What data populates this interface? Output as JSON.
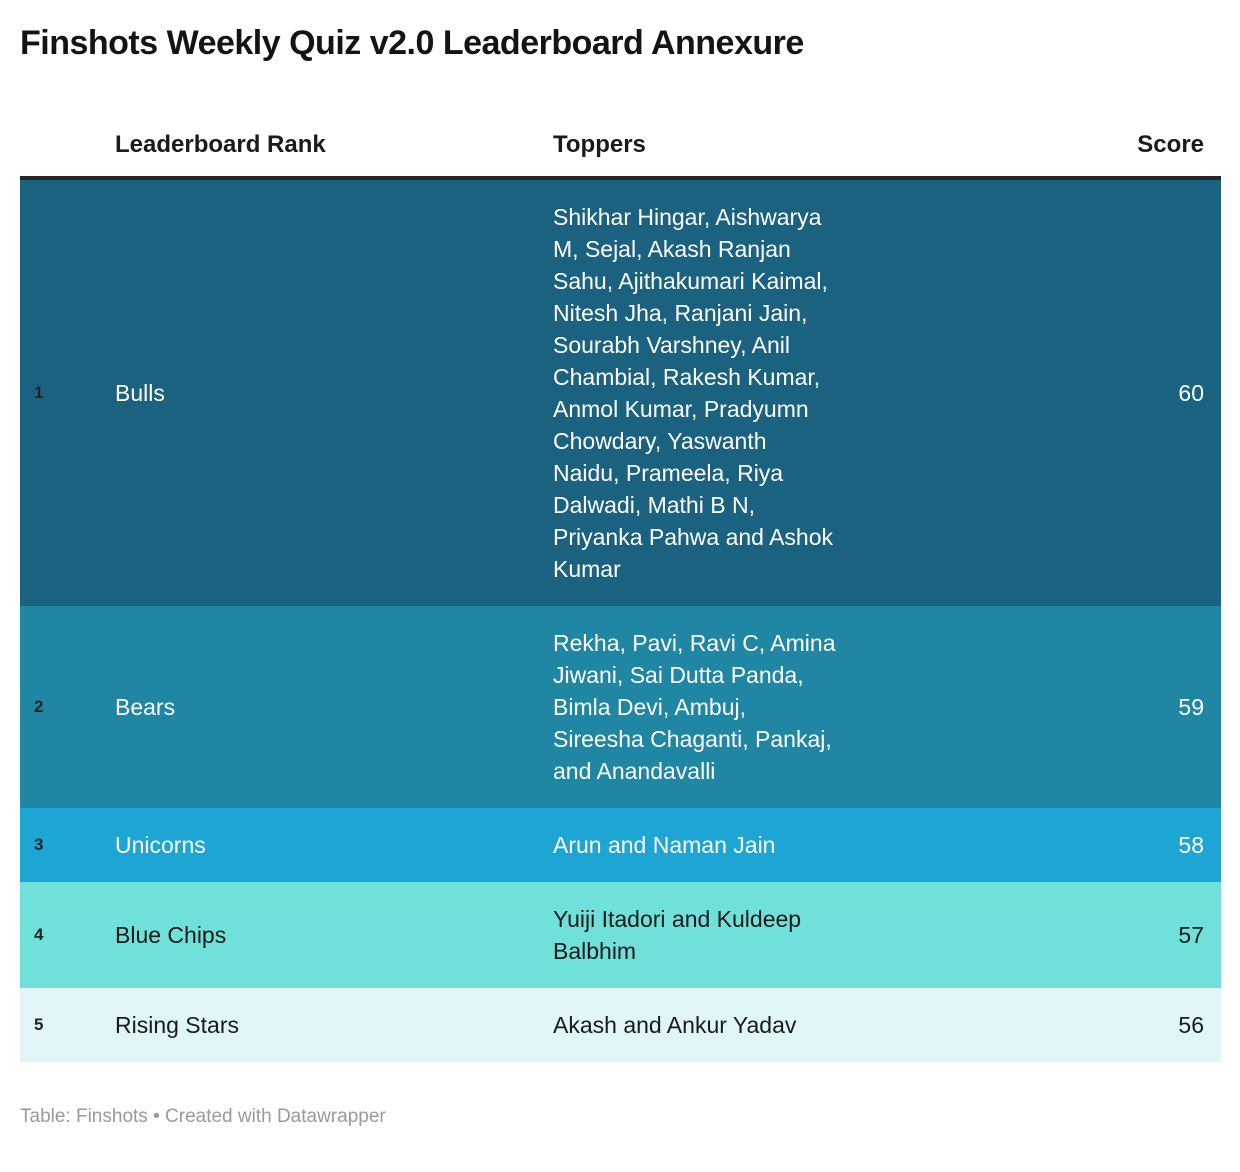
{
  "title": "Finshots Weekly Quiz v2.0 Leaderboard Annexure",
  "table": {
    "columns": [
      "Leaderboard Rank",
      "Toppers",
      "Score"
    ],
    "rows": [
      {
        "rank": "1",
        "team": "Bulls",
        "toppers": "Shikhar Hingar, Aishwarya\nM, Sejal, Akash Ranjan\nSahu, Ajithakumari Kaimal,\nNitesh Jha, Ranjani Jain,\nSourabh Varshney, Anil\nChambial, Rakesh Kumar,\nAnmol Kumar, Pradyumn\nChowdary, Yaswanth\nNaidu, Prameela, Riya\nDalwadi, Mathi B N,\nPriyanka Pahwa and Ashok\nKumar",
        "score": "60",
        "bg": "#1A627F",
        "fg": "#FFFFFF"
      },
      {
        "rank": "2",
        "team": "Bears",
        "toppers": "Rekha, Pavi, Ravi C, Amina\nJiwani, Sai Dutta Panda,\nBimla Devi, Ambuj,\nSireesha Chaganti, Pankaj,\nand Anandavalli",
        "score": "59",
        "bg": "#1F86A3",
        "fg": "#FFFFFF"
      },
      {
        "rank": "3",
        "team": "Unicorns",
        "toppers": "Arun and Naman Jain",
        "score": "58",
        "bg": "#1DA5D4",
        "fg": "#FFFFFF"
      },
      {
        "rank": "4",
        "team": "Blue Chips",
        "toppers": "Yuiji Itadori and Kuldeep\nBalbhim",
        "score": "57",
        "bg": "#70E0DB",
        "fg": "#1A1A1A"
      },
      {
        "rank": "5",
        "team": "Rising Stars",
        "toppers": "Akash and Ankur Yadav",
        "score": "56",
        "bg": "#E0F5F7",
        "fg": "#1A1A1A"
      }
    ]
  },
  "footer": {
    "source_label": "Table:",
    "source_name": "Finshots",
    "separator": "•",
    "attribution": "Created with Datawrapper"
  },
  "colors": {
    "header_border": "#262626",
    "rank_text": "#242424",
    "footer_text": "#9A9A9A",
    "title_text": "#141414"
  },
  "chart_data": {
    "type": "table",
    "title": "Finshots Weekly Quiz v2.0 Leaderboard Annexure",
    "columns": [
      "Leaderboard Rank",
      "Toppers",
      "Score"
    ],
    "rows": [
      [
        1,
        "Bulls",
        "Shikhar Hingar, Aishwarya M, Sejal, Akash Ranjan Sahu, Ajithakumari Kaimal, Nitesh Jha, Ranjani Jain, Sourabh Varshney, Anil Chambial, Rakesh Kumar, Anmol Kumar, Pradyumn Chowdary, Yaswanth Naidu, Prameela, Riya Dalwadi, Mathi B N, Priyanka Pahwa and Ashok Kumar",
        60
      ],
      [
        2,
        "Bears",
        "Rekha, Pavi, Ravi C, Amina Jiwani, Sai Dutta Panda, Bimla Devi, Ambuj, Sireesha Chaganti, Pankaj, and Anandavalli",
        59
      ],
      [
        3,
        "Unicorns",
        "Arun and Naman Jain",
        58
      ],
      [
        4,
        "Blue Chips",
        "Yuiji Itadori and Kuldeep Balbhim",
        57
      ],
      [
        5,
        "Rising Stars",
        "Akash and Ankur Yadav",
        56
      ]
    ],
    "row_colors": [
      "#1A627F",
      "#1F86A3",
      "#1DA5D4",
      "#70E0DB",
      "#E0F5F7"
    ],
    "legend_position": "none",
    "source": "Finshots",
    "attribution": "Created with Datawrapper"
  }
}
